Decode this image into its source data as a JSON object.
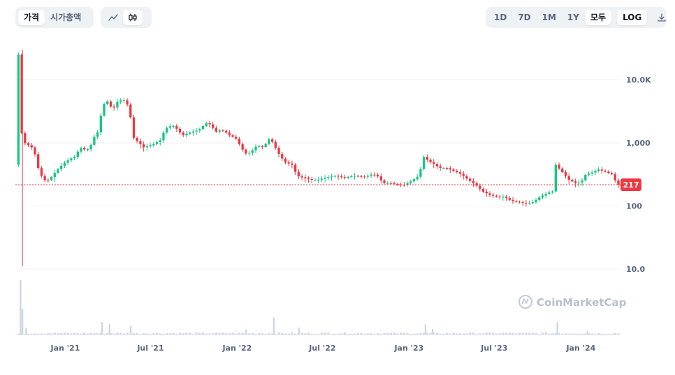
{
  "toolbar": {
    "left_tabs": [
      {
        "label": "가격",
        "active": true
      },
      {
        "label": "시가총액",
        "active": false
      }
    ],
    "chart_style": {
      "line_icon": "line-chart-icon",
      "candle_icon": "candlestick-icon",
      "active": "candle"
    },
    "ranges": [
      {
        "label": "1D",
        "active": false
      },
      {
        "label": "7D",
        "active": false
      },
      {
        "label": "1M",
        "active": false
      },
      {
        "label": "1Y",
        "active": false
      },
      {
        "label": "모두",
        "active": true
      }
    ],
    "log_label": "LOG",
    "download_icon": "download-icon"
  },
  "watermark": "CoinMarketCap",
  "colors": {
    "up": "#16c784",
    "down": "#ea3943",
    "volume": "#cfd6e4",
    "grid": "#eff2f5"
  },
  "chart_data": {
    "type": "candlestick",
    "scale": "log",
    "ylim": [
      10,
      40000
    ],
    "yticks": [
      {
        "value": 10,
        "label": "10.0"
      },
      {
        "value": 100,
        "label": "100"
      },
      {
        "value": 1000,
        "label": "1,000"
      },
      {
        "value": 10000,
        "label": "10.0K"
      }
    ],
    "x_range": [
      "2020-09-17",
      "2024-03-25"
    ],
    "xticks": [
      {
        "date": "2021-01-01",
        "label": "Jan '21"
      },
      {
        "date": "2021-07-01",
        "label": "Jul '21"
      },
      {
        "date": "2022-01-01",
        "label": "Jan '22"
      },
      {
        "date": "2022-07-01",
        "label": "Jul '22"
      },
      {
        "date": "2023-01-01",
        "label": "Jan '23"
      },
      {
        "date": "2023-07-01",
        "label": "Jul '23"
      },
      {
        "date": "2024-01-01",
        "label": "Jan '24"
      }
    ],
    "current_price": {
      "value": 217,
      "label": "217"
    },
    "price_path": [
      [
        "2020-09-20",
        450
      ],
      [
        "2020-09-27",
        25000
      ],
      [
        "2020-10-02",
        1600
      ],
      [
        "2020-10-10",
        1000
      ],
      [
        "2020-10-20",
        900
      ],
      [
        "2020-10-30",
        800
      ],
      [
        "2020-11-05",
        450
      ],
      [
        "2020-11-15",
        300
      ],
      [
        "2020-11-25",
        240
      ],
      [
        "2020-12-05",
        280
      ],
      [
        "2020-12-15",
        350
      ],
      [
        "2020-12-25",
        420
      ],
      [
        "2021-01-05",
        500
      ],
      [
        "2021-01-15",
        560
      ],
      [
        "2021-01-25",
        600
      ],
      [
        "2021-02-05",
        850
      ],
      [
        "2021-02-15",
        780
      ],
      [
        "2021-02-25",
        800
      ],
      [
        "2021-03-05",
        1200
      ],
      [
        "2021-03-15",
        1500
      ],
      [
        "2021-03-25",
        4000
      ],
      [
        "2021-04-05",
        4600
      ],
      [
        "2021-04-15",
        3300
      ],
      [
        "2021-04-25",
        4500
      ],
      [
        "2021-05-05",
        4800
      ],
      [
        "2021-05-12",
        4700
      ],
      [
        "2021-05-20",
        3500
      ],
      [
        "2021-05-30",
        1200
      ],
      [
        "2021-06-10",
        1000
      ],
      [
        "2021-06-20",
        850
      ],
      [
        "2021-07-01",
        900
      ],
      [
        "2021-07-10",
        950
      ],
      [
        "2021-07-25",
        1100
      ],
      [
        "2021-08-05",
        1700
      ],
      [
        "2021-08-20",
        1900
      ],
      [
        "2021-09-01",
        1600
      ],
      [
        "2021-09-10",
        1300
      ],
      [
        "2021-09-20",
        1400
      ],
      [
        "2021-10-01",
        1500
      ],
      [
        "2021-10-15",
        1600
      ],
      [
        "2021-11-01",
        2100
      ],
      [
        "2021-11-10",
        1900
      ],
      [
        "2021-11-20",
        1500
      ],
      [
        "2021-12-01",
        1600
      ],
      [
        "2021-12-10",
        1500
      ],
      [
        "2021-12-20",
        1300
      ],
      [
        "2022-01-01",
        1200
      ],
      [
        "2022-01-15",
        800
      ],
      [
        "2022-01-25",
        650
      ],
      [
        "2022-02-05",
        750
      ],
      [
        "2022-02-15",
        900
      ],
      [
        "2022-03-01",
        850
      ],
      [
        "2022-03-15",
        1200
      ],
      [
        "2022-03-25",
        900
      ],
      [
        "2022-04-01",
        700
      ],
      [
        "2022-04-15",
        500
      ],
      [
        "2022-05-01",
        450
      ],
      [
        "2022-05-12",
        300
      ],
      [
        "2022-05-25",
        280
      ],
      [
        "2022-06-10",
        260
      ],
      [
        "2022-06-25",
        260
      ],
      [
        "2022-07-10",
        280
      ],
      [
        "2022-08-01",
        300
      ],
      [
        "2022-08-20",
        280
      ],
      [
        "2022-09-10",
        300
      ],
      [
        "2022-10-01",
        290
      ],
      [
        "2022-10-20",
        320
      ],
      [
        "2022-11-01",
        290
      ],
      [
        "2022-11-10",
        230
      ],
      [
        "2022-11-25",
        230
      ],
      [
        "2022-12-10",
        220
      ],
      [
        "2022-12-25",
        215
      ],
      [
        "2023-01-10",
        250
      ],
      [
        "2023-01-25",
        300
      ],
      [
        "2023-02-05",
        600
      ],
      [
        "2023-02-15",
        520
      ],
      [
        "2023-02-25",
        470
      ],
      [
        "2023-03-10",
        400
      ],
      [
        "2023-03-25",
        400
      ],
      [
        "2023-04-10",
        360
      ],
      [
        "2023-04-25",
        320
      ],
      [
        "2023-05-10",
        260
      ],
      [
        "2023-05-25",
        220
      ],
      [
        "2023-06-10",
        170
      ],
      [
        "2023-06-25",
        150
      ],
      [
        "2023-07-10",
        140
      ],
      [
        "2023-07-25",
        140
      ],
      [
        "2023-08-10",
        120
      ],
      [
        "2023-08-25",
        115
      ],
      [
        "2023-09-10",
        110
      ],
      [
        "2023-09-25",
        115
      ],
      [
        "2023-10-10",
        140
      ],
      [
        "2023-10-25",
        160
      ],
      [
        "2023-11-05",
        170
      ],
      [
        "2023-11-12",
        450
      ],
      [
        "2023-11-25",
        350
      ],
      [
        "2023-12-10",
        260
      ],
      [
        "2023-12-25",
        230
      ],
      [
        "2024-01-05",
        240
      ],
      [
        "2024-01-15",
        320
      ],
      [
        "2024-01-25",
        330
      ],
      [
        "2024-02-10",
        380
      ],
      [
        "2024-02-25",
        350
      ],
      [
        "2024-03-10",
        320
      ],
      [
        "2024-03-22",
        217
      ]
    ],
    "volume_spikes": [
      [
        "2020-09-28",
        0.95
      ],
      [
        "2020-10-02",
        0.45
      ],
      [
        "2020-10-10",
        0.12
      ],
      [
        "2021-03-20",
        0.22
      ],
      [
        "2021-04-05",
        0.18
      ],
      [
        "2021-05-20",
        0.15
      ],
      [
        "2022-01-20",
        0.09
      ],
      [
        "2022-03-20",
        0.3
      ],
      [
        "2022-05-12",
        0.12
      ],
      [
        "2023-02-05",
        0.18
      ],
      [
        "2023-02-20",
        0.1
      ],
      [
        "2023-11-12",
        0.22
      ],
      [
        "2024-01-15",
        0.06
      ]
    ]
  }
}
